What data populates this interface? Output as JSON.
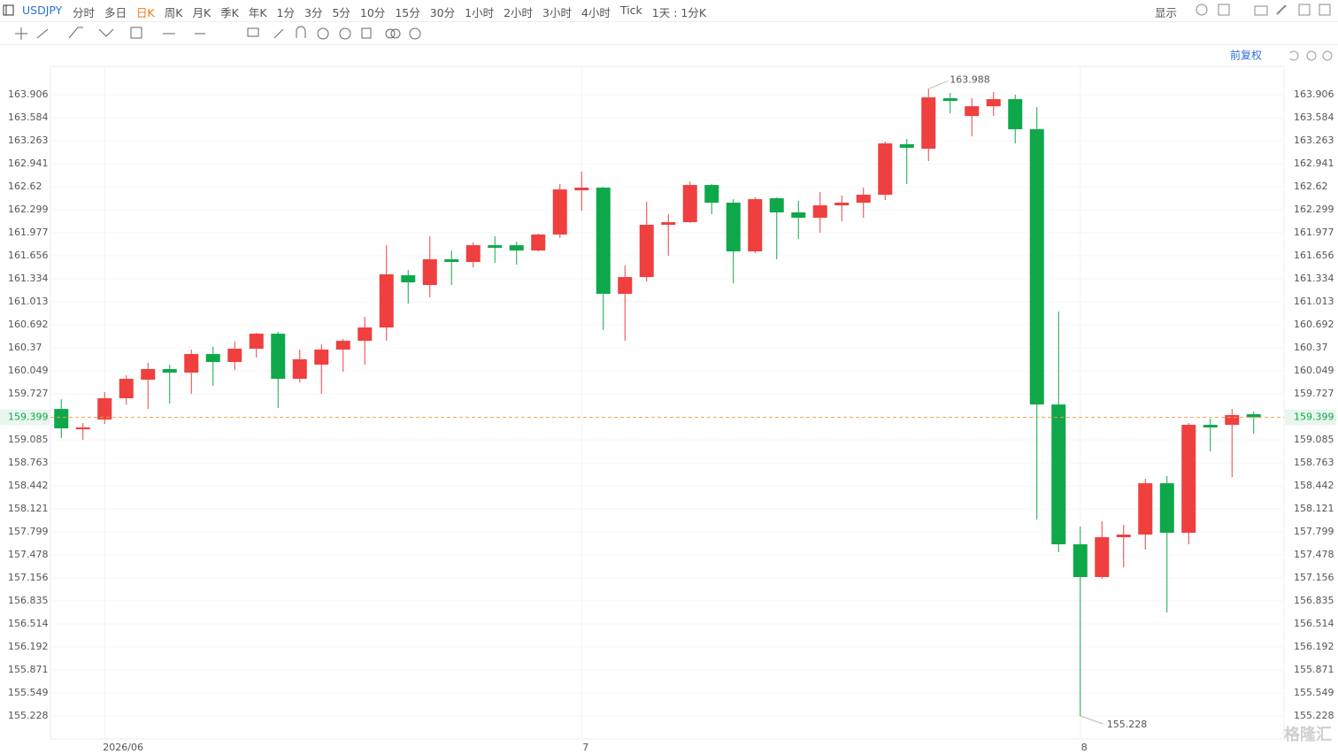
{
  "toolbar": {
    "symbol": "USDJPY",
    "periods": [
      "分时",
      "多日",
      "日K",
      "周K",
      "月K",
      "季K",
      "年K",
      "1分",
      "3分",
      "5分",
      "10分",
      "15分",
      "30分",
      "1小时",
      "2小时",
      "3小时",
      "4小时",
      "Tick",
      "1天 : 1分K"
    ],
    "active_period": 2,
    "display": "显示",
    "adjust": "前复权",
    "watermark": "格隆汇"
  },
  "chart_data": {
    "type": "candlestick",
    "categories": [
      null,
      null,
      "2026/06",
      null,
      null,
      null,
      null,
      null,
      null,
      null,
      null,
      null,
      null,
      null,
      null,
      null,
      null,
      null,
      null,
      null,
      null,
      null,
      null,
      null,
      "7",
      null,
      null,
      null,
      null,
      null,
      null,
      null,
      null,
      null,
      null,
      null,
      null,
      null,
      null,
      null,
      null,
      null,
      null,
      null,
      null,
      null,
      null,
      "8",
      null,
      null,
      null,
      null,
      null,
      null,
      null,
      null
    ],
    "open": [
      159.517,
      159.233,
      159.369,
      159.666,
      159.925,
      160.074,
      160.024,
      160.284,
      160.173,
      160.358,
      160.568,
      159.938,
      160.136,
      160.346,
      160.469,
      160.655,
      161.384,
      161.248,
      161.607,
      161.57,
      161.804,
      161.804,
      161.73,
      161.953,
      162.571,
      162.608,
      161.125,
      161.359,
      162.089,
      162.126,
      162.645,
      162.398,
      161.718,
      162.46,
      162.262,
      162.188,
      162.361,
      162.398,
      162.509,
      163.214,
      163.152,
      163.857,
      163.609,
      163.745,
      163.844,
      163.424,
      159.579,
      157.626,
      157.169,
      157.725,
      157.762,
      158.479,
      157.787,
      159.295,
      159.295,
      159.443
    ],
    "high": [
      159.653,
      159.32,
      159.752,
      159.987,
      160.16,
      160.136,
      160.346,
      160.383,
      160.457,
      160.58,
      160.593,
      160.346,
      160.42,
      160.494,
      160.803,
      161.804,
      161.458,
      161.928,
      161.73,
      161.842,
      161.928,
      161.854,
      161.965,
      162.657,
      162.831,
      162.62,
      161.52,
      162.41,
      162.237,
      162.695,
      162.66,
      162.447,
      162.472,
      162.472,
      162.423,
      162.546,
      162.497,
      162.608,
      163.251,
      163.288,
      163.988,
      163.931,
      163.857,
      163.943,
      163.906,
      163.733,
      160.877,
      157.873,
      157.948,
      157.898,
      158.541,
      158.578,
      159.32,
      159.381,
      159.517,
      159.48
    ],
    "low": [
      159.11,
      159.085,
      159.307,
      159.579,
      159.517,
      159.592,
      159.728,
      159.839,
      160.061,
      160.234,
      159.53,
      159.888,
      159.728,
      160.037,
      160.136,
      160.469,
      160.989,
      161.075,
      161.248,
      161.495,
      161.557,
      161.532,
      161.718,
      161.903,
      162.287,
      160.618,
      160.469,
      161.298,
      161.656,
      162.114,
      162.237,
      161.273,
      161.693,
      161.607,
      161.891,
      161.978,
      162.138,
      162.188,
      162.435,
      162.657,
      162.979,
      163.646,
      163.325,
      163.609,
      163.226,
      157.972,
      157.515,
      155.228,
      157.144,
      157.305,
      157.552,
      156.674,
      157.626,
      158.924,
      158.566,
      159.171
    ],
    "close": [
      159.246,
      159.258,
      159.666,
      159.938,
      160.074,
      160.024,
      160.284,
      160.173,
      160.358,
      160.568,
      159.938,
      160.21,
      160.346,
      160.469,
      160.655,
      161.397,
      161.285,
      161.607,
      161.57,
      161.804,
      161.767,
      161.73,
      161.953,
      162.583,
      162.608,
      161.125,
      161.359,
      162.089,
      162.126,
      162.645,
      162.398,
      161.718,
      162.447,
      162.262,
      162.188,
      162.361,
      162.398,
      162.509,
      163.226,
      163.164,
      163.869,
      163.819,
      163.745,
      163.844,
      163.424,
      159.579,
      157.626,
      157.169,
      157.725,
      157.762,
      158.479,
      157.787,
      159.295,
      159.258,
      159.431,
      159.399
    ],
    "up_color": "#ef3f3f",
    "down_color": "#0ea84b",
    "last_price_color": "#0ea84b",
    "ylim": [
      154.907,
      164.302
    ],
    "yticks": [
      155.228,
      155.549,
      155.871,
      156.192,
      156.514,
      156.835,
      157.156,
      157.478,
      157.799,
      158.121,
      158.442,
      158.763,
      159.085,
      159.727,
      160.049,
      160.37,
      160.692,
      161.013,
      161.334,
      161.656,
      161.977,
      162.299,
      162.62,
      162.941,
      163.263,
      163.584,
      163.906
    ],
    "grid": true
  }
}
